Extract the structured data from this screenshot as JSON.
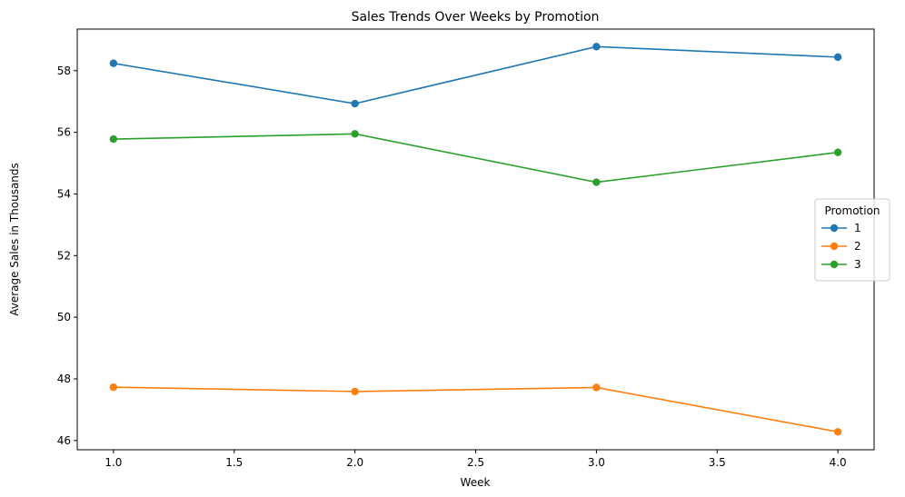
{
  "chart_data": {
    "type": "line",
    "title": "Sales Trends Over Weeks by Promotion",
    "xlabel": "Week",
    "ylabel": "Average Sales in Thousands",
    "x": [
      1,
      2,
      3,
      4
    ],
    "xlim": [
      0.85,
      4.15
    ],
    "ylim": [
      45.7,
      59.35
    ],
    "xticks": [
      1.0,
      1.5,
      2.0,
      2.5,
      3.0,
      3.5,
      4.0
    ],
    "xtick_labels": [
      "1.0",
      "1.5",
      "2.0",
      "2.5",
      "3.0",
      "3.5",
      "4.0"
    ],
    "yticks": [
      46,
      48,
      50,
      52,
      54,
      56,
      58
    ],
    "ytick_labels": [
      "46",
      "48",
      "50",
      "52",
      "54",
      "56",
      "58"
    ],
    "grid": false,
    "legend": {
      "title": "Promotion",
      "placement": "center-right"
    },
    "series": [
      {
        "name": "1",
        "color": "#1f77b4",
        "values": [
          58.24,
          56.93,
          58.78,
          58.44
        ]
      },
      {
        "name": "2",
        "color": "#ff7f0e",
        "values": [
          47.73,
          47.59,
          47.72,
          46.28
        ]
      },
      {
        "name": "3",
        "color": "#2ca02c",
        "values": [
          55.78,
          55.95,
          54.38,
          55.35
        ]
      }
    ]
  }
}
